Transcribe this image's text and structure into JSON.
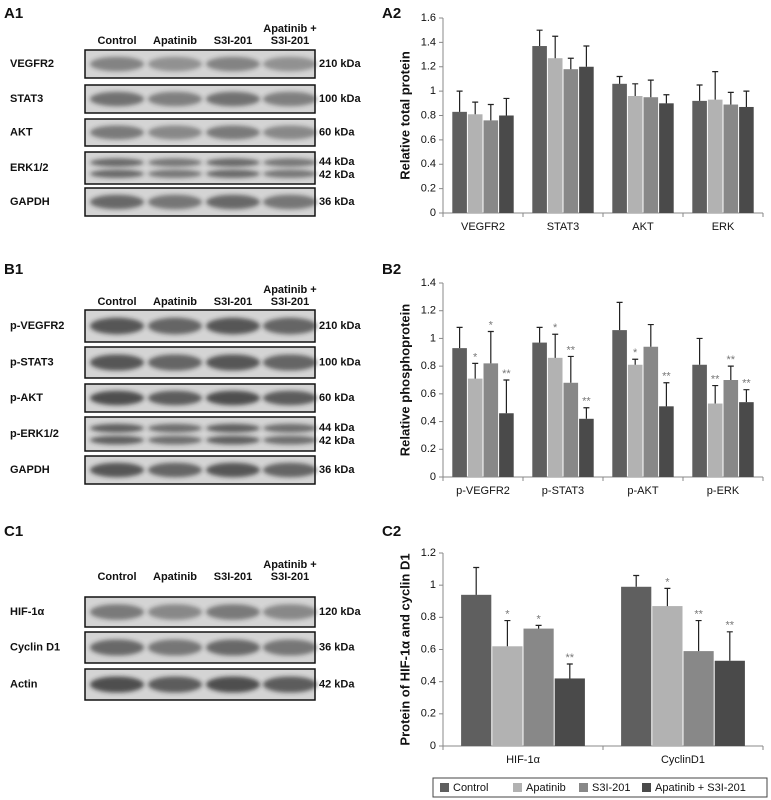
{
  "blots": [
    {
      "panel": "A1",
      "headers": [
        [
          "Control"
        ],
        [
          "Apatinib"
        ],
        [
          "S3I-201"
        ],
        [
          "Apatinib +",
          "S3I-201"
        ]
      ],
      "rows": [
        {
          "name": "VEGFR2",
          "kda": [
            "210 kDa"
          ]
        },
        {
          "name": "STAT3",
          "kda": [
            "100 kDa"
          ]
        },
        {
          "name": "AKT",
          "kda": [
            "60 kDa"
          ]
        },
        {
          "name": "ERK1/2",
          "kda": [
            "44 kDa",
            "42 kDa"
          ]
        },
        {
          "name": "GAPDH",
          "kda": [
            "36 kDa"
          ]
        }
      ]
    },
    {
      "panel": "B1",
      "headers": [
        [
          "Control"
        ],
        [
          "Apatinib"
        ],
        [
          "S3I-201"
        ],
        [
          "Apatinib +",
          "S3I-201"
        ]
      ],
      "rows": [
        {
          "name": "p-VEGFR2",
          "kda": [
            "210 kDa"
          ]
        },
        {
          "name": "p-STAT3",
          "kda": [
            "100 kDa"
          ]
        },
        {
          "name": "p-AKT",
          "kda": [
            "60 kDa"
          ]
        },
        {
          "name": "p-ERK1/2",
          "kda": [
            "44 kDa",
            "42 kDa"
          ]
        },
        {
          "name": "GAPDH",
          "kda": [
            "36 kDa"
          ]
        }
      ]
    },
    {
      "panel": "C1",
      "headers": [
        [
          "Control"
        ],
        [
          "Apatinib"
        ],
        [
          "S3I-201"
        ],
        [
          "Apatinib +",
          "S3I-201"
        ]
      ],
      "rows": [
        {
          "name": "HIF-1α",
          "kda": [
            "120 kDa"
          ]
        },
        {
          "name": "Cyclin D1",
          "kda": [
            "36 kDa"
          ]
        },
        {
          "name": "Actin",
          "kda": [
            "42 kDa"
          ]
        }
      ]
    }
  ],
  "chart_data": [
    {
      "type": "bar",
      "panel": "A2",
      "y_label": "Relative total protein",
      "categories": [
        "VEGFR2",
        "STAT3",
        "AKT",
        "ERK"
      ],
      "series": [
        {
          "color": "#5f5f5f",
          "values": [
            0.83,
            1.37,
            1.06,
            0.92
          ],
          "errors": [
            0.17,
            0.13,
            0.06,
            0.13
          ]
        },
        {
          "color": "#b2b2b2",
          "values": [
            0.81,
            1.27,
            0.96,
            0.93
          ],
          "errors": [
            0.1,
            0.18,
            0.1,
            0.23
          ]
        },
        {
          "color": "#888888",
          "values": [
            0.76,
            1.18,
            0.95,
            0.89
          ],
          "errors": [
            0.13,
            0.09,
            0.14,
            0.1
          ]
        },
        {
          "color": "#4a4a4a",
          "values": [
            0.8,
            1.2,
            0.9,
            0.87
          ],
          "errors": [
            0.14,
            0.17,
            0.07,
            0.13
          ]
        }
      ],
      "ylim": [
        0,
        1.6
      ],
      "yticks": [
        0,
        0.2,
        0.4,
        0.6,
        0.8,
        1,
        1.2,
        1.4,
        1.6
      ]
    },
    {
      "type": "bar",
      "panel": "B2",
      "y_label": "Relative phosphoprotein",
      "categories": [
        "p-VEGFR2",
        "p-STAT3",
        "p-AKT",
        "p-ERK"
      ],
      "series": [
        {
          "color": "#5f5f5f",
          "values": [
            0.93,
            0.97,
            1.06,
            0.81
          ],
          "errors": [
            0.15,
            0.11,
            0.2,
            0.19
          ],
          "annotations": [
            null,
            null,
            null,
            null
          ]
        },
        {
          "color": "#b2b2b2",
          "values": [
            0.71,
            0.86,
            0.81,
            0.53
          ],
          "errors": [
            0.11,
            0.17,
            0.04,
            0.13
          ],
          "annotations": [
            "*",
            "*",
            "*",
            "**"
          ]
        },
        {
          "color": "#888888",
          "values": [
            0.82,
            0.68,
            0.94,
            0.7
          ],
          "errors": [
            0.23,
            0.19,
            0.16,
            0.1
          ],
          "annotations": [
            "*",
            "**",
            null,
            "**"
          ]
        },
        {
          "color": "#4a4a4a",
          "values": [
            0.46,
            0.42,
            0.51,
            0.54
          ],
          "errors": [
            0.24,
            0.08,
            0.17,
            0.09
          ],
          "annotations": [
            "**",
            "**",
            "**",
            "**"
          ]
        }
      ],
      "ylim": [
        0,
        1.4
      ],
      "yticks": [
        0,
        0.2,
        0.4,
        0.6,
        0.8,
        1,
        1.2,
        1.4
      ]
    },
    {
      "type": "bar",
      "panel": "C2",
      "y_label": "Protein of HIF-1α and cyclin D1",
      "categories": [
        "HIF-1α",
        "CyclinD1"
      ],
      "series": [
        {
          "name": "Control",
          "color": "#5f5f5f",
          "values": [
            0.94,
            0.99
          ],
          "errors": [
            0.17,
            0.07
          ],
          "annotations": [
            null,
            null
          ]
        },
        {
          "name": "Apatinib",
          "color": "#b2b2b2",
          "values": [
            0.62,
            0.87
          ],
          "errors": [
            0.16,
            0.11
          ],
          "annotations": [
            "*",
            "*"
          ]
        },
        {
          "name": "S3I-201",
          "color": "#888888",
          "values": [
            0.73,
            0.59
          ],
          "errors": [
            0.02,
            0.19
          ],
          "annotations": [
            "*",
            "**"
          ]
        },
        {
          "name": "Apatinib + S3I-201",
          "color": "#4a4a4a",
          "values": [
            0.42,
            0.53
          ],
          "errors": [
            0.09,
            0.18
          ],
          "annotations": [
            "**",
            "**"
          ]
        }
      ],
      "ylim": [
        0,
        1.2
      ],
      "yticks": [
        0,
        0.2,
        0.4,
        0.6,
        0.8,
        1,
        1.2
      ],
      "legend": "bottom"
    }
  ]
}
